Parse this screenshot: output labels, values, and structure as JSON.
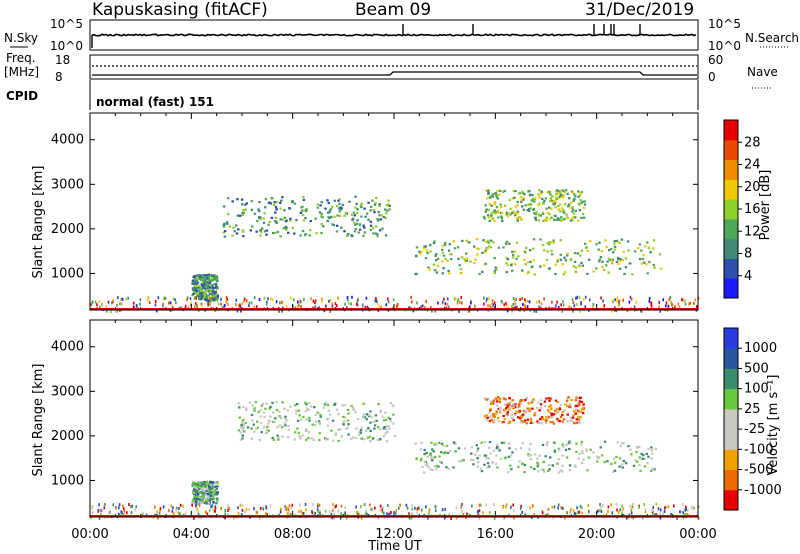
{
  "header": {
    "station": "Kapuskasing (fitACF)",
    "beam": "Beam 09",
    "date": "31/Dec/2019",
    "cpid_text": "normal (fast) 151"
  },
  "top_panels": {
    "nsky_label": "N.Sky",
    "nsky_top": "10^5",
    "nsky_bottom": "10^0",
    "nsearch_label": "N.Search",
    "nsearch_top": "10^5",
    "nsearch_bottom": "10^0",
    "freq_label": "Freq.",
    "freq_unit": "[MHz]",
    "freq_top": "18",
    "freq_bottom": "8",
    "nave_label": "Nave",
    "nave_top": "60",
    "nave_bottom": "0",
    "cpid_label": "CPID"
  },
  "colors": {
    "power": [
      "#1a1aff",
      "#2f4fb0",
      "#3f8b75",
      "#4fa85a",
      "#8fcf2a",
      "#f2c800",
      "#f08c00",
      "#e84a00",
      "#e80000"
    ],
    "velocity": [
      "#2a3ce0",
      "#2a56a0",
      "#3a8c6a",
      "#66c83a",
      "#c8c8c0",
      "#c8c8c0",
      "#f0a000",
      "#ec6a00",
      "#e80000"
    ]
  },
  "chart_data": [
    {
      "type": "heatmap",
      "name": "power",
      "ylabel": "Slant Range [km]",
      "yticks": [
        "1000",
        "2000",
        "3000",
        "4000"
      ],
      "xticks": [
        "00:00",
        "04:00",
        "08:00",
        "12:00",
        "16:00",
        "20:00",
        "00:00"
      ],
      "ylim": [
        180,
        4600
      ],
      "xlim": [
        0,
        24
      ],
      "colorbar_label": "Power [dB]",
      "colorbar_ticks": [
        "4",
        "8",
        "12",
        "16",
        "20",
        "24",
        "28"
      ],
      "regions": [
        {
          "t0": 5.2,
          "t1": 11.8,
          "r0": 1850,
          "r1": 2750,
          "level": 3
        },
        {
          "t0": 12.8,
          "t1": 22.5,
          "r0": 1000,
          "r1": 1800,
          "level": 4
        },
        {
          "t0": 15.5,
          "t1": 19.5,
          "r0": 2200,
          "r1": 2900,
          "level": 4
        },
        {
          "t0": 4.0,
          "t1": 5.0,
          "r0": 400,
          "r1": 1000,
          "level": 3
        }
      ]
    },
    {
      "type": "heatmap",
      "name": "velocity",
      "ylabel": "Slant Range [km]",
      "yticks": [
        "1000",
        "2000",
        "3000",
        "4000"
      ],
      "xticks": [
        "00:00",
        "04:00",
        "08:00",
        "12:00",
        "16:00",
        "20:00",
        "00:00"
      ],
      "xlabel": "Time UT",
      "ylim": [
        180,
        4600
      ],
      "xlim": [
        0,
        24
      ],
      "colorbar_label": "Velocity [m s⁻¹]",
      "colorbar_ticks": [
        "1000",
        "500",
        "100",
        "25",
        "-25",
        "-100",
        "-500",
        "-1000"
      ],
      "regions": [
        {
          "t0": 5.8,
          "t1": 12.0,
          "r0": 1900,
          "r1": 2800,
          "level": 4
        },
        {
          "t0": 12.8,
          "t1": 22.3,
          "r0": 1200,
          "r1": 1900,
          "level": 4
        },
        {
          "t0": 15.5,
          "t1": 19.5,
          "r0": 2300,
          "r1": 2900,
          "level": 7
        },
        {
          "t0": 4.0,
          "t1": 5.0,
          "r0": 500,
          "r1": 1000,
          "level": 3
        }
      ]
    }
  ]
}
